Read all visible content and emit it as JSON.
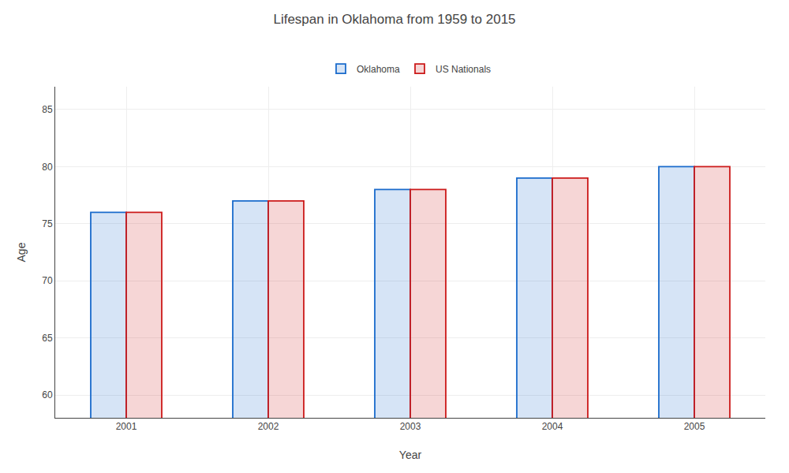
{
  "chart_data": {
    "type": "bar",
    "title": "Lifespan in Oklahoma from 1959 to 2015",
    "xlabel": "Year",
    "ylabel": "Age",
    "categories": [
      "2001",
      "2002",
      "2003",
      "2004",
      "2005"
    ],
    "series": [
      {
        "name": "Oklahoma",
        "color": "#1a6bcc",
        "values": [
          76,
          77,
          78,
          79,
          80
        ]
      },
      {
        "name": "US Nationals",
        "color": "#cc1a1a",
        "values": [
          76,
          77,
          78,
          79,
          80
        ]
      }
    ],
    "ylim": [
      58,
      87
    ],
    "yticks": [
      60,
      65,
      70,
      75,
      80,
      85
    ],
    "grid": true,
    "legend": "top"
  }
}
